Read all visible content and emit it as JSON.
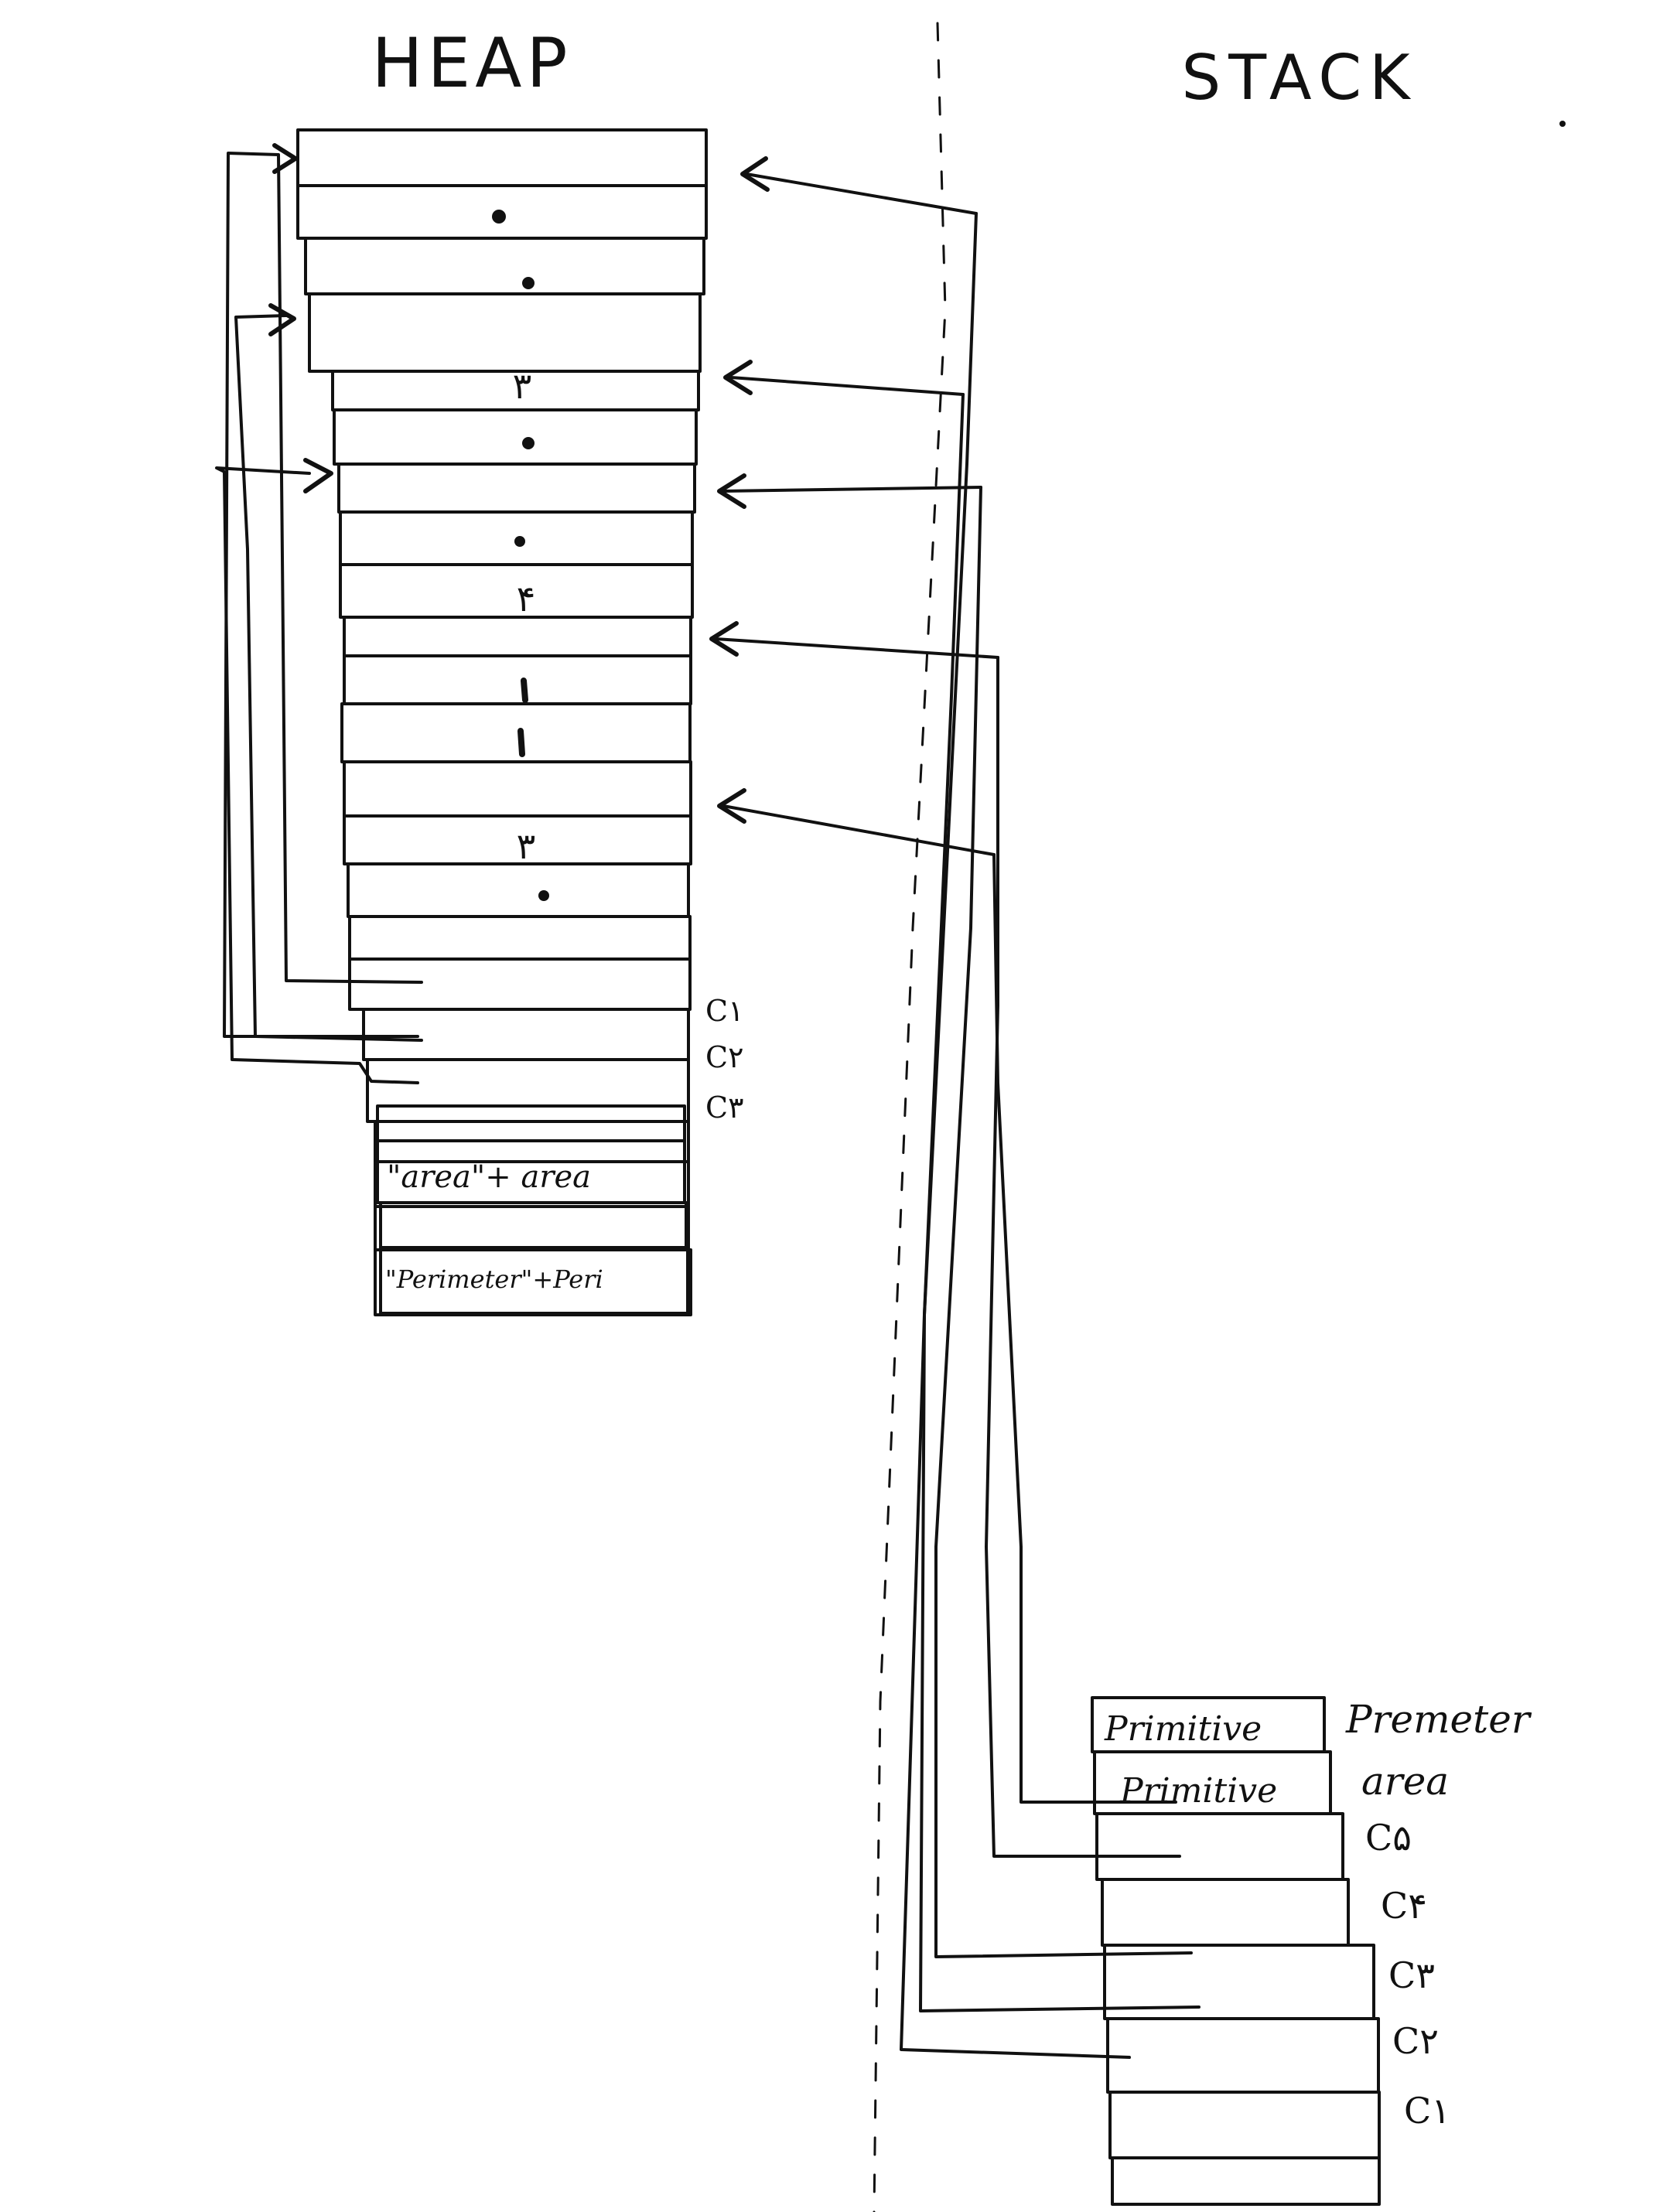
{
  "headings": {
    "heap": "HEAP",
    "stack": "STACK"
  },
  "heap": {
    "cell_labels": [
      "C۱",
      "C۲",
      "C۳"
    ],
    "mark_glyphs": [
      "۳",
      "۴",
      "۳"
    ],
    "strings": [
      "\"area\"+ area",
      "\"Perimeter\"+Peri"
    ]
  },
  "stack": {
    "entries": [
      "Primitive",
      "Primitive"
    ],
    "labels": [
      "Premeter",
      "area",
      "C۵",
      "C۴",
      "C۳",
      "C۲",
      "C۱"
    ]
  },
  "colors": {
    "ink": "#111111",
    "paper": "#ffffff"
  }
}
